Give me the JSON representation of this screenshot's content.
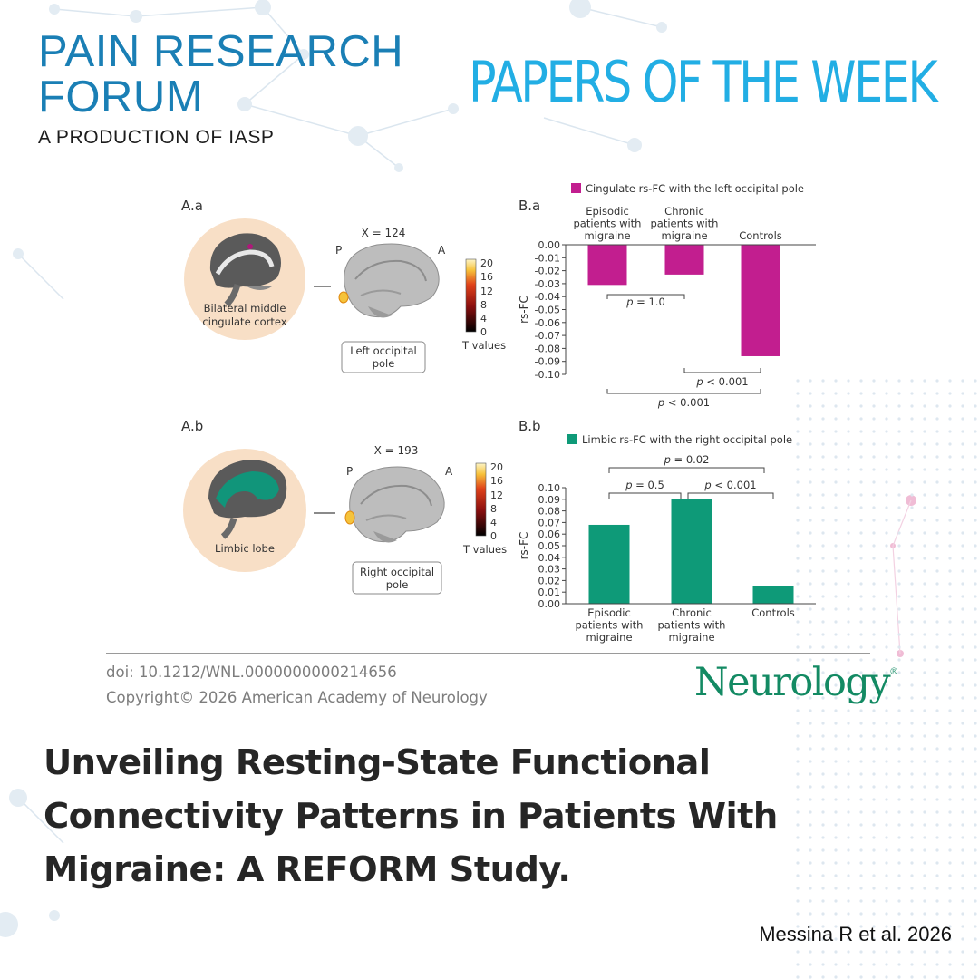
{
  "brand": {
    "line1": "PAIN RESEARCH",
    "line2": "FORUM",
    "line3": "A PRODUCTION OF IASP",
    "color": "#1a7fb5"
  },
  "header_right": {
    "text": "PAPERS OF THE WEEK",
    "color": "#22aee4"
  },
  "figure": {
    "panel_a_a": {
      "label": "A.a",
      "region": "Bilateral middle cingulate cortex",
      "region_lines": [
        "Bilateral middle",
        "cingulate cortex"
      ],
      "slice": "X = 124",
      "dir_p": "P",
      "dir_a": "A",
      "target": "Left occipital pole",
      "target_lines": [
        "Left occipital",
        "pole"
      ],
      "colorbar_ticks": [
        "20",
        "16",
        "12",
        "8",
        "4",
        "0"
      ],
      "colorbar_label": "T values"
    },
    "panel_a_b": {
      "label": "A.b",
      "region": "Limbic lobe",
      "slice": "X = 193",
      "dir_p": "P",
      "dir_a": "A",
      "target": "Right occipital pole",
      "target_lines": [
        "Right occipital",
        "pole"
      ],
      "colorbar_ticks": [
        "20",
        "16",
        "12",
        "8",
        "4",
        "0"
      ],
      "colorbar_label": "T values"
    }
  },
  "chart_data": [
    {
      "type": "bar",
      "panel": "B.a",
      "legend": "Cingulate rs-FC with the left occipital pole",
      "color": "#c21e8f",
      "categories": [
        "Episodic patients with migraine",
        "Chronic patients with migraine",
        "Controls"
      ],
      "category_lines": [
        [
          "Episodic",
          "patients with",
          "migraine"
        ],
        [
          "Chronic",
          "patients with",
          "migraine"
        ],
        [
          "Controls"
        ]
      ],
      "values": [
        -0.031,
        -0.023,
        -0.086
      ],
      "ylabel": "rs-FC",
      "ylim": [
        -0.1,
        0.0
      ],
      "yticks": [
        "0.00",
        "-0.01",
        "-0.02",
        "-0.03",
        "-0.04",
        "-0.05",
        "-0.06",
        "-0.07",
        "-0.08",
        "-0.09",
        "-0.10"
      ],
      "comparisons": [
        {
          "pair": [
            0,
            1
          ],
          "p": "1.0"
        },
        {
          "pair": [
            1,
            2
          ],
          "p": "< 0.001"
        },
        {
          "pair": [
            0,
            2
          ],
          "p": "< 0.001"
        }
      ]
    },
    {
      "type": "bar",
      "panel": "B.b",
      "legend": "Limbic rs-FC with the right occipital pole",
      "color": "#0e9a78",
      "categories": [
        "Episodic patients with migraine",
        "Chronic patients with migraine",
        "Controls"
      ],
      "category_lines": [
        [
          "Episodic",
          "patients with",
          "migraine"
        ],
        [
          "Chronic",
          "patients with",
          "migraine"
        ],
        [
          "Controls"
        ]
      ],
      "values": [
        0.068,
        0.09,
        0.015
      ],
      "ylabel": "rs-FC",
      "ylim": [
        0.0,
        0.1
      ],
      "yticks": [
        "0.10",
        "0.09",
        "0.08",
        "0.07",
        "0.06",
        "0.05",
        "0.04",
        "0.03",
        "0.02",
        "0.01",
        "0.00"
      ],
      "comparisons": [
        {
          "pair": [
            0,
            1
          ],
          "p": "0.5"
        },
        {
          "pair": [
            1,
            2
          ],
          "p": "< 0.001"
        },
        {
          "pair": [
            0,
            2
          ],
          "p": "0.02"
        }
      ]
    }
  ],
  "footer": {
    "doi": "doi: 10.1212/WNL.0000000000214656",
    "copyright": "Copyright© 2026 American Academy of Neurology",
    "journal": "Neurology",
    "journal_mark": "®",
    "journal_color": "#138a63"
  },
  "title": "Unveiling Resting-State Functional Connectivity Patterns in Patients With Migraine: A REFORM Study.",
  "author": "Messina R et al. 2026"
}
